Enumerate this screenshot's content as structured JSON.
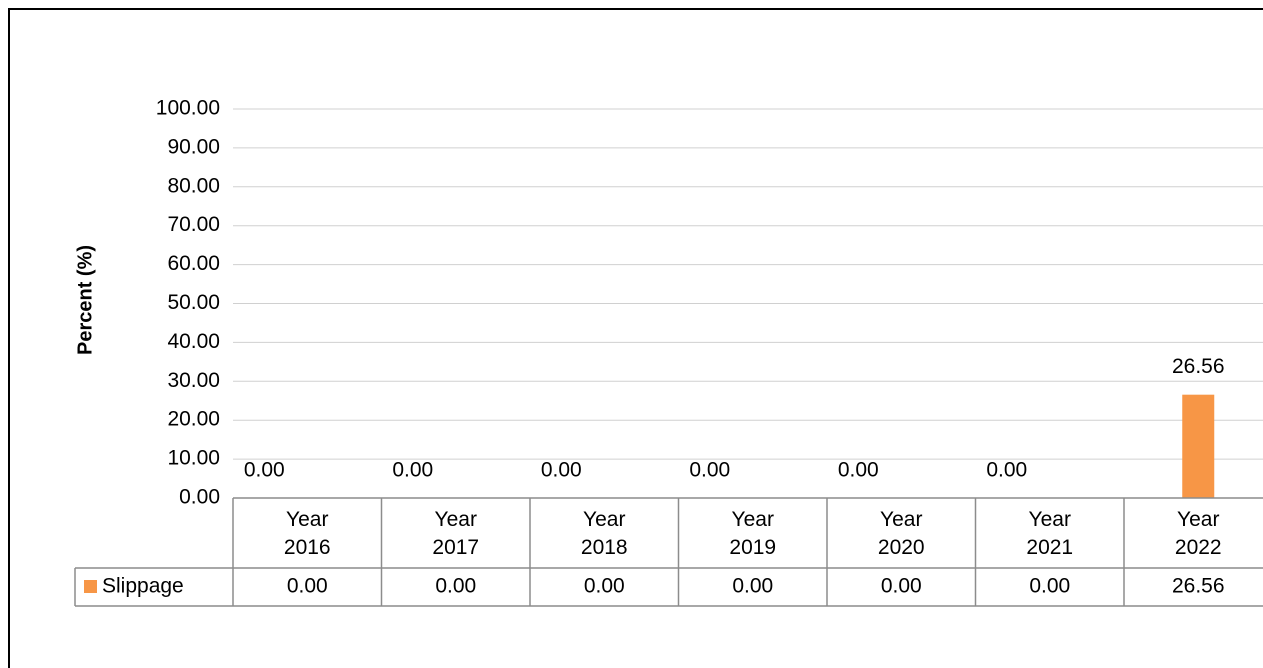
{
  "chart_data": {
    "type": "bar",
    "y_label": "Percent (%)",
    "categories": [
      "Year 2016",
      "Year 2017",
      "Year 2018",
      "Year 2019",
      "Year 2020",
      "Year 2021",
      "Year 2022"
    ],
    "series": [
      {
        "name": "Slippage",
        "color": "#f79646",
        "values": [
          0,
          0,
          0,
          0,
          0,
          0,
          26.56
        ],
        "value_labels": [
          "0.00",
          "0.00",
          "0.00",
          "0.00",
          "0.00",
          "0.00",
          "26.56"
        ]
      }
    ],
    "ylim": [
      0,
      100
    ],
    "yticks": [
      {
        "value": 0,
        "label": "0.00"
      },
      {
        "value": 10,
        "label": "10.00"
      },
      {
        "value": 20,
        "label": "20.00"
      },
      {
        "value": 30,
        "label": "30.00"
      },
      {
        "value": 40,
        "label": "40.00"
      },
      {
        "value": 50,
        "label": "50.00"
      },
      {
        "value": 60,
        "label": "60.00"
      },
      {
        "value": 70,
        "label": "70.00"
      },
      {
        "value": 80,
        "label": "80.00"
      },
      {
        "value": 90,
        "label": "90.00"
      },
      {
        "value": 100,
        "label": "100.00"
      }
    ],
    "grid": true,
    "data_table": true
  }
}
